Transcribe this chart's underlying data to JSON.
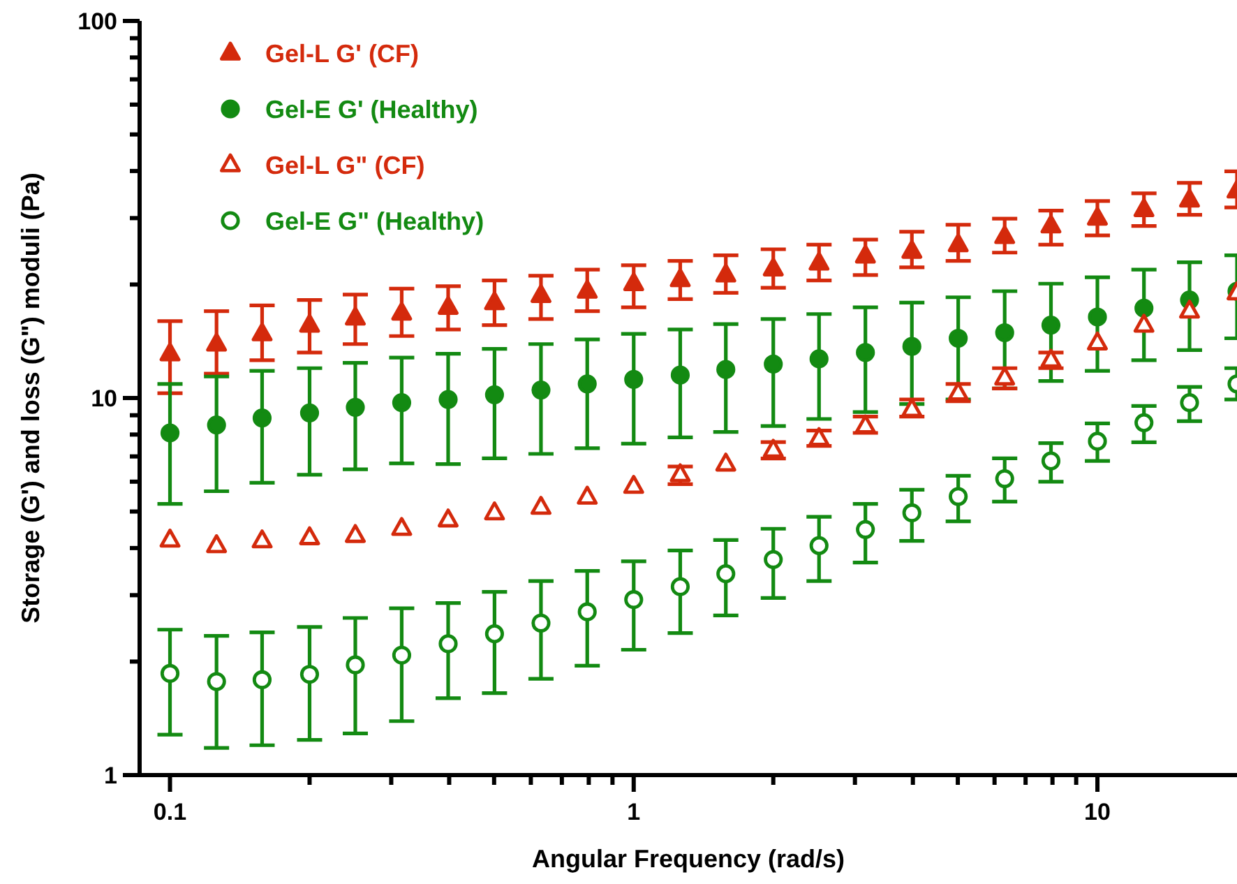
{
  "chart_data": {
    "type": "scatter",
    "xlabel": "Angular Frequency (rad/s)",
    "ylabel": "Storage (G') and loss (G\") moduli (Pa)",
    "log": "xy",
    "grid": false,
    "legend": "top left",
    "xlim": [
      0.086,
      20
    ],
    "ylim": [
      1,
      100
    ],
    "xticks": [
      {
        "value": 0.1,
        "label": "0.1"
      },
      {
        "value": 0.2,
        "label": null
      },
      {
        "value": 0.3,
        "label": null
      },
      {
        "value": 0.4,
        "label": null
      },
      {
        "value": 0.5,
        "label": null
      },
      {
        "value": 0.6,
        "label": null
      },
      {
        "value": 0.7,
        "label": null
      },
      {
        "value": 0.8,
        "label": null
      },
      {
        "value": 0.9,
        "label": null
      },
      1,
      {
        "value": 2,
        "label": null
      },
      {
        "value": 3,
        "label": null
      },
      {
        "value": 4,
        "label": null
      },
      {
        "value": 5,
        "label": null
      },
      {
        "value": 6,
        "label": null
      },
      {
        "value": 7,
        "label": null
      },
      {
        "value": 8,
        "label": null
      },
      {
        "value": 9,
        "label": null
      },
      10
    ],
    "yticks": [
      1,
      {
        "value": 2,
        "label": null
      },
      {
        "value": 3,
        "label": null
      },
      {
        "value": 4,
        "label": null
      },
      {
        "value": 5,
        "label": null
      },
      {
        "value": 6,
        "label": null
      },
      {
        "value": 7,
        "label": null
      },
      {
        "value": 8,
        "label": null
      },
      {
        "value": 9,
        "label": null
      },
      10,
      {
        "value": 20,
        "label": null
      },
      {
        "value": 30,
        "label": null
      },
      {
        "value": 40,
        "label": null
      },
      {
        "value": 50,
        "label": null
      },
      {
        "value": 60,
        "label": null
      },
      {
        "value": 70,
        "label": null
      },
      {
        "value": 80,
        "label": null
      },
      {
        "value": 90,
        "label": null
      },
      100
    ],
    "x": [
      0.1,
      0.126,
      0.158,
      0.2,
      0.251,
      0.316,
      0.398,
      0.501,
      0.631,
      0.794,
      1,
      1.26,
      1.58,
      2,
      2.51,
      3.16,
      3.98,
      5.01,
      6.31,
      7.94,
      10,
      12.6,
      15.8,
      20
    ],
    "series": [
      {
        "name": "Gel-L G' (CF)",
        "color": "#d42a0c",
        "marker": "triangle",
        "values": [
          13.1,
          13.9,
          14.8,
          15.6,
          16.3,
          16.8,
          17.4,
          17.9,
          18.7,
          19.2,
          20.1,
          20.6,
          21.2,
          22.0,
          22.8,
          23.8,
          24.5,
          25.5,
          26.8,
          28.6,
          30.0,
          31.6,
          33.5,
          35.4
        ],
        "errors": [
          [
            10.3,
            16.0
          ],
          [
            11.6,
            17.0
          ],
          [
            12.6,
            17.6
          ],
          [
            13.2,
            18.2
          ],
          [
            13.9,
            18.8
          ],
          [
            14.6,
            19.5
          ],
          [
            15.2,
            19.8
          ],
          [
            15.6,
            20.5
          ],
          [
            16.2,
            21.1
          ],
          [
            17.0,
            21.9
          ],
          [
            17.4,
            22.5
          ],
          [
            18.3,
            23.1
          ],
          [
            19.0,
            23.9
          ],
          [
            19.6,
            24.8
          ],
          [
            20.5,
            25.5
          ],
          [
            21.2,
            26.3
          ],
          [
            22.2,
            27.6
          ],
          [
            23.1,
            28.8
          ],
          [
            24.3,
            29.9
          ],
          [
            25.5,
            31.4
          ],
          [
            27.0,
            33.3
          ],
          [
            28.6,
            34.9
          ],
          [
            30.6,
            37.2
          ],
          [
            32.0,
            39.9
          ]
        ]
      },
      {
        "name": "Gel-E G' (Healthy)",
        "color": "#138a12",
        "marker": "circle",
        "values": [
          8.08,
          8.48,
          8.85,
          9.13,
          9.45,
          9.72,
          9.91,
          10.2,
          10.5,
          10.9,
          11.2,
          11.5,
          11.9,
          12.3,
          12.7,
          13.2,
          13.7,
          14.4,
          14.9,
          15.6,
          16.4,
          17.3,
          18.2,
          19.2
        ],
        "errors": [
          [
            5.24,
            10.9
          ],
          [
            5.66,
            11.4
          ],
          [
            5.96,
            11.8
          ],
          [
            6.26,
            12.0
          ],
          [
            6.47,
            12.4
          ],
          [
            6.71,
            12.8
          ],
          [
            6.68,
            13.1
          ],
          [
            6.92,
            13.5
          ],
          [
            7.11,
            13.9
          ],
          [
            7.36,
            14.3
          ],
          [
            7.57,
            14.8
          ],
          [
            7.86,
            15.2
          ],
          [
            8.13,
            15.7
          ],
          [
            8.43,
            16.2
          ],
          [
            8.8,
            16.7
          ],
          [
            9.18,
            17.4
          ],
          [
            9.64,
            17.9
          ],
          [
            9.91,
            18.5
          ],
          [
            10.6,
            19.2
          ],
          [
            11.1,
            20.1
          ],
          [
            11.8,
            20.9
          ],
          [
            12.6,
            21.9
          ],
          [
            13.4,
            22.9
          ],
          [
            14.4,
            23.9
          ]
        ]
      },
      {
        "name": "Gel-L G\" (CF)",
        "color": "#d42a0c",
        "marker": "triangle-open",
        "values": [
          4.2,
          4.06,
          4.18,
          4.26,
          4.32,
          4.51,
          4.75,
          4.96,
          5.13,
          5.46,
          5.83,
          6.26,
          6.68,
          7.27,
          7.81,
          8.43,
          9.32,
          10.3,
          11.3,
          12.6,
          14.0,
          15.6,
          17.0,
          19.0
        ],
        "errors": [
          null,
          null,
          null,
          null,
          null,
          null,
          null,
          null,
          null,
          null,
          null,
          [
            5.91,
            6.58
          ],
          null,
          [
            6.91,
            7.64
          ],
          [
            7.46,
            8.2
          ],
          [
            8.08,
            8.93
          ],
          [
            8.93,
            9.91
          ],
          [
            9.8,
            10.9
          ],
          [
            10.6,
            12.0
          ],
          [
            12.0,
            13.2
          ],
          null,
          null,
          null,
          null
        ]
      },
      {
        "name": "Gel-E G\" (Healthy)",
        "color": "#138a12",
        "marker": "circle-open",
        "values": [
          1.86,
          1.77,
          1.79,
          1.85,
          1.96,
          2.08,
          2.23,
          2.37,
          2.53,
          2.71,
          2.92,
          3.16,
          3.42,
          3.73,
          4.06,
          4.48,
          4.96,
          5.48,
          6.11,
          6.81,
          7.68,
          8.6,
          9.72,
          10.9
        ],
        "errors": [
          [
            1.28,
            2.43
          ],
          [
            1.18,
            2.34
          ],
          [
            1.2,
            2.39
          ],
          [
            1.24,
            2.47
          ],
          [
            1.29,
            2.61
          ],
          [
            1.39,
            2.77
          ],
          [
            1.6,
            2.86
          ],
          [
            1.65,
            3.06
          ],
          [
            1.8,
            3.27
          ],
          [
            1.95,
            3.48
          ],
          [
            2.15,
            3.69
          ],
          [
            2.38,
            3.94
          ],
          [
            2.65,
            4.2
          ],
          [
            2.95,
            4.5
          ],
          [
            3.27,
            4.84
          ],
          [
            3.66,
            5.24
          ],
          [
            4.18,
            5.71
          ],
          [
            4.71,
            6.22
          ],
          [
            5.31,
            6.92
          ],
          [
            6.0,
            7.59
          ],
          [
            6.81,
            8.56
          ],
          [
            7.63,
            9.53
          ],
          [
            8.68,
            10.7
          ],
          [
            9.91,
            12.0
          ]
        ]
      }
    ]
  }
}
